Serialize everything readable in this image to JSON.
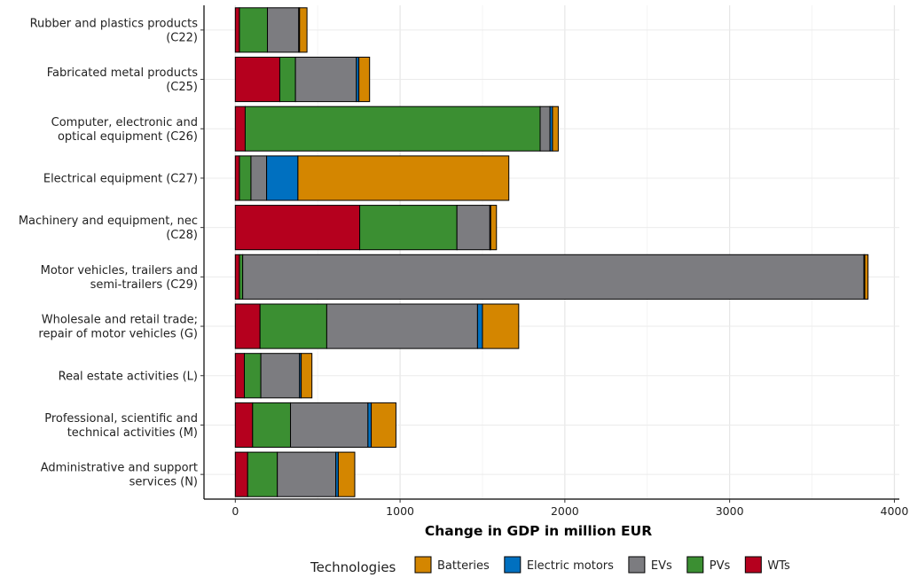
{
  "chart_data": {
    "type": "bar",
    "orientation": "horizontal",
    "stacked": true,
    "categories": [
      [
        "Rubber and plastics products",
        "(C22)"
      ],
      [
        "Fabricated metal products",
        "(C25)"
      ],
      [
        "Computer, electronic and",
        "optical equipment (C26)"
      ],
      [
        "Electrical equipment (C27)"
      ],
      [
        "Machinery and equipment, nec",
        "(C28)"
      ],
      [
        "Motor vehicles, trailers and",
        "semi-trailers (C29)"
      ],
      [
        "Wholesale and retail trade;",
        "repair of motor vehicles (G)"
      ],
      [
        "Real estate activities (L)"
      ],
      [
        "Professional, scientific and",
        "technical activities (M)"
      ],
      [
        "Administrative and support",
        "services (N)"
      ]
    ],
    "series": [
      {
        "name": "WTs",
        "color": "#b5001e",
        "values": [
          25,
          270,
          60,
          25,
          755,
          25,
          150,
          55,
          105,
          75
        ]
      },
      {
        "name": "PVs",
        "color": "#3b8f32",
        "values": [
          170,
          95,
          1790,
          70,
          590,
          20,
          405,
          100,
          230,
          180
        ]
      },
      {
        "name": "EVs",
        "color": "#7c7c80",
        "values": [
          190,
          370,
          60,
          95,
          200,
          3770,
          915,
          235,
          470,
          355
        ]
      },
      {
        "name": "Electric motors",
        "color": "#0070c0",
        "values": [
          5,
          15,
          15,
          190,
          5,
          5,
          30,
          10,
          20,
          15
        ]
      },
      {
        "name": "Batteries",
        "color": "#d48600",
        "values": [
          45,
          65,
          35,
          1280,
          35,
          20,
          220,
          65,
          150,
          100
        ]
      }
    ],
    "xlabel": "Change in GDP in million EUR",
    "ylabel": "",
    "xlim": [
      -190,
      4030
    ],
    "xticks": [
      0,
      1000,
      2000,
      3000,
      4000
    ],
    "grid": true,
    "legend": {
      "title": "Technologies",
      "position": "bottom",
      "order": [
        "Batteries",
        "Electric motors",
        "EVs",
        "PVs",
        "WTs"
      ]
    }
  }
}
